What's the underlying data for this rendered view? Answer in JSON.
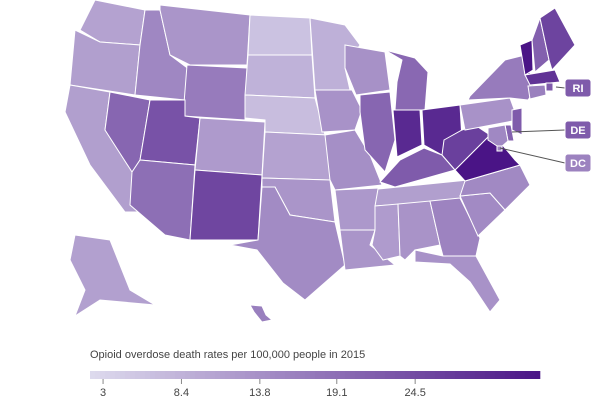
{
  "chart_data": {
    "type": "choropleth",
    "legend_title": "Opioid overdose death rates per 100,000 people in 2015",
    "colorlim": [
      2.1,
      33.1
    ],
    "colorticks": [
      3,
      8.4,
      13.8,
      19.1,
      24.5
    ],
    "colors": [
      "#dedbee",
      "#4a1486"
    ],
    "values": [
      11,
      11.5,
      11.5,
      20.4,
      15.2,
      13,
      17,
      23.4,
      19,
      12.2,
      25.3,
      6,
      8.5,
      6.8,
      11,
      13,
      14.6,
      8.8,
      13.5,
      14,
      12.5,
      13,
      13.7,
      20.4,
      20,
      29.9,
      29.9,
      22.1,
      11.5,
      12,
      13.3,
      15.8,
      13.5,
      14.7,
      14.8,
      41.5,
      26.3,
      13.4,
      17,
      34.3,
      21.2,
      25.7,
      28.2,
      22.1,
      16.3,
      22,
      20.9,
      15,
      16,
      11.3,
      16.5
    ],
    "callouts": [
      "RI",
      "DE",
      "DC"
    ]
  }
}
